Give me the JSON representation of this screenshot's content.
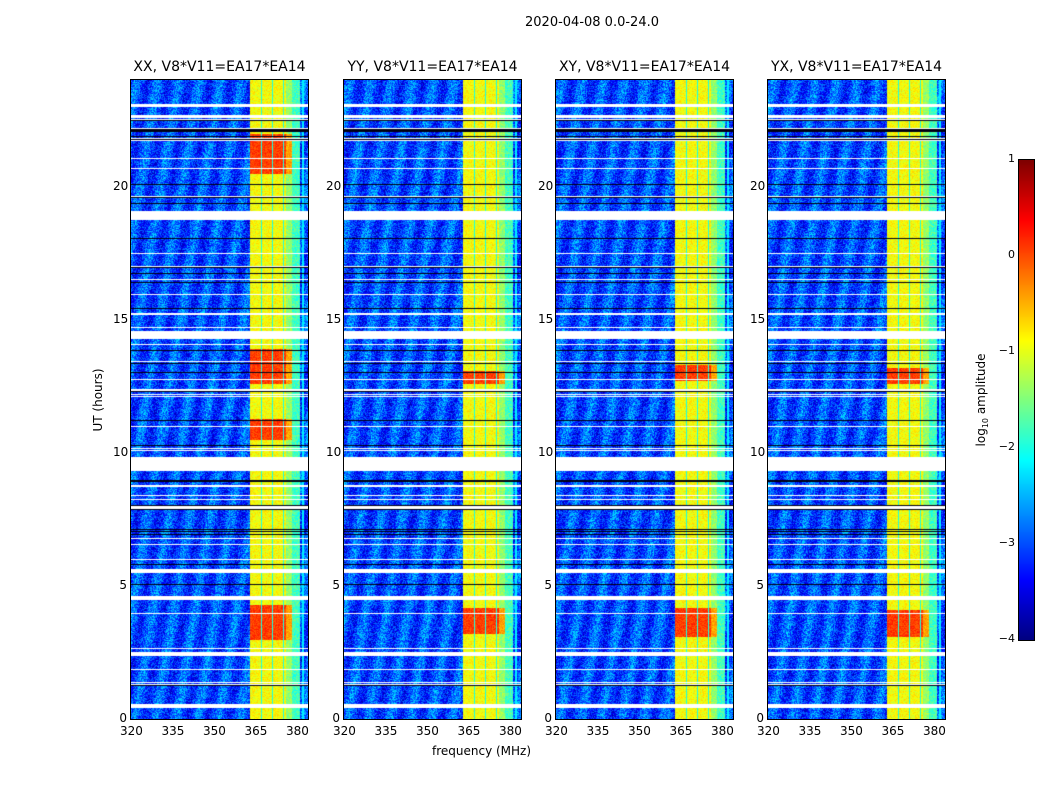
{
  "chart_data": {
    "type": "heatmap",
    "title": "2020-04-08 0.0-24.0",
    "xlabel": "frequency (MHz)",
    "ylabel": "UT (hours)",
    "xlim": [
      320,
      384
    ],
    "ylim": [
      0,
      24
    ],
    "xticks": [
      "320",
      "335",
      "350",
      "365",
      "380"
    ],
    "xtick_values": [
      320,
      335,
      350,
      365,
      380
    ],
    "yticks": [
      "0",
      "5",
      "10",
      "15",
      "20"
    ],
    "ytick_values": [
      0,
      5,
      10,
      15,
      20
    ],
    "panels": [
      {
        "title": "XX, V8*V11=EA17*EA14",
        "strong_hours": [
          [
            3,
            4.3
          ],
          [
            10.5,
            11.3
          ],
          [
            12.6,
            13.9
          ],
          [
            20.5,
            22
          ]
        ]
      },
      {
        "title": "YY, V8*V11=EA17*EA14",
        "strong_hours": [
          [
            3.2,
            4.2
          ],
          [
            12.6,
            13.1
          ]
        ]
      },
      {
        "title": "XY, V8*V11=EA17*EA14",
        "strong_hours": [
          [
            3.1,
            4.2
          ],
          [
            12.7,
            13.3
          ]
        ]
      },
      {
        "title": "YX, V8*V11=EA17*EA14",
        "strong_hours": [
          [
            3.1,
            4.1
          ],
          [
            12.6,
            13.2
          ]
        ]
      }
    ],
    "rfi_band_mhz": [
      363,
      378
    ],
    "flagged_hours": [
      [
        0.45,
        0.6
      ],
      [
        2.4,
        2.55
      ],
      [
        4.5,
        4.6
      ],
      [
        5.5,
        5.65
      ],
      [
        9.35,
        9.85
      ],
      [
        14.3,
        14.6
      ],
      [
        18.75,
        19.05
      ],
      [
        22.6,
        22.7
      ],
      [
        23.0,
        23.1
      ]
    ],
    "colorbar": {
      "label": "log10 amplitude",
      "range": [
        -4,
        1
      ],
      "ticks": [
        "−4",
        "−3",
        "−2",
        "−1",
        "0",
        "1"
      ],
      "colormap": "jet"
    }
  }
}
